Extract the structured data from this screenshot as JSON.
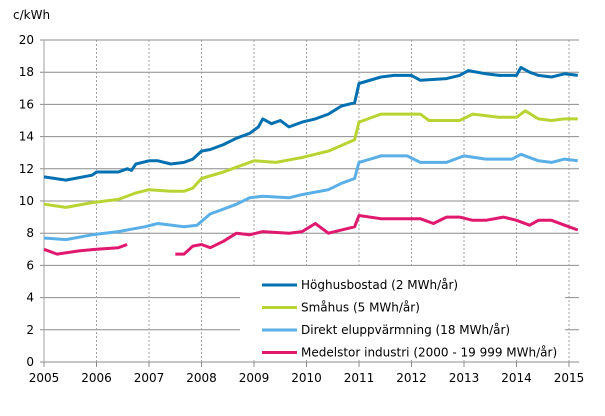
{
  "chart_data": {
    "type": "line",
    "title": "",
    "ylabel": "c/kWh",
    "xlabel": "",
    "xlim": [
      "2005-01",
      "2015-03"
    ],
    "ylim": [
      0,
      20
    ],
    "x_ticks": [
      "2005",
      "2006",
      "2007",
      "2008",
      "2009",
      "2010",
      "2011",
      "2012",
      "2013",
      "2014",
      "2015"
    ],
    "y_ticks": [
      "0",
      "2",
      "4",
      "6",
      "8",
      "10",
      "12",
      "14",
      "16",
      "18",
      "20"
    ],
    "grid": {
      "horizontal": "solid",
      "vertical": "dotted"
    },
    "legend_position": "bottom-right",
    "series": [
      {
        "name": "Höghusbostad (2 MWh/år)",
        "color": "#0070b0",
        "points": [
          [
            "2005-01",
            11.5
          ],
          [
            "2005-06",
            11.3
          ],
          [
            "2005-12",
            11.6
          ],
          [
            "2006-01",
            11.8
          ],
          [
            "2006-06",
            11.8
          ],
          [
            "2006-08",
            12.0
          ],
          [
            "2006-09",
            11.9
          ],
          [
            "2006-10",
            12.3
          ],
          [
            "2007-01",
            12.5
          ],
          [
            "2007-03",
            12.5
          ],
          [
            "2007-06",
            12.3
          ],
          [
            "2007-09",
            12.4
          ],
          [
            "2007-11",
            12.6
          ],
          [
            "2008-01",
            13.1
          ],
          [
            "2008-03",
            13.2
          ],
          [
            "2008-06",
            13.5
          ],
          [
            "2008-09",
            13.9
          ],
          [
            "2008-12",
            14.2
          ],
          [
            "2009-02",
            14.6
          ],
          [
            "2009-03",
            15.1
          ],
          [
            "2009-05",
            14.8
          ],
          [
            "2009-07",
            15.0
          ],
          [
            "2009-09",
            14.6
          ],
          [
            "2009-12",
            14.9
          ],
          [
            "2010-03",
            15.1
          ],
          [
            "2010-06",
            15.4
          ],
          [
            "2010-09",
            15.9
          ],
          [
            "2010-12",
            16.1
          ],
          [
            "2011-01",
            17.3
          ],
          [
            "2011-06",
            17.7
          ],
          [
            "2011-09",
            17.8
          ],
          [
            "2012-01",
            17.8
          ],
          [
            "2012-03",
            17.5
          ],
          [
            "2012-09",
            17.6
          ],
          [
            "2012-12",
            17.8
          ],
          [
            "2013-02",
            18.1
          ],
          [
            "2013-06",
            17.9
          ],
          [
            "2013-09",
            17.8
          ],
          [
            "2014-01",
            17.8
          ],
          [
            "2014-02",
            18.3
          ],
          [
            "2014-04",
            18.0
          ],
          [
            "2014-06",
            17.8
          ],
          [
            "2014-09",
            17.7
          ],
          [
            "2014-12",
            17.9
          ],
          [
            "2015-03",
            17.8
          ]
        ]
      },
      {
        "name": "Småhus (5 MWh/år)",
        "color": "#b8d432",
        "points": [
          [
            "2005-01",
            9.8
          ],
          [
            "2005-06",
            9.6
          ],
          [
            "2005-12",
            9.9
          ],
          [
            "2006-06",
            10.1
          ],
          [
            "2006-10",
            10.5
          ],
          [
            "2007-01",
            10.7
          ],
          [
            "2007-06",
            10.6
          ],
          [
            "2007-09",
            10.6
          ],
          [
            "2007-11",
            10.8
          ],
          [
            "2008-01",
            11.4
          ],
          [
            "2008-06",
            11.8
          ],
          [
            "2008-09",
            12.1
          ],
          [
            "2009-01",
            12.5
          ],
          [
            "2009-06",
            12.4
          ],
          [
            "2009-12",
            12.7
          ],
          [
            "2010-06",
            13.1
          ],
          [
            "2010-12",
            13.8
          ],
          [
            "2011-01",
            14.9
          ],
          [
            "2011-06",
            15.4
          ],
          [
            "2012-03",
            15.4
          ],
          [
            "2012-05",
            15.0
          ],
          [
            "2012-12",
            15.0
          ],
          [
            "2013-03",
            15.4
          ],
          [
            "2013-09",
            15.2
          ],
          [
            "2014-01",
            15.2
          ],
          [
            "2014-03",
            15.6
          ],
          [
            "2014-06",
            15.1
          ],
          [
            "2014-09",
            15.0
          ],
          [
            "2014-12",
            15.1
          ],
          [
            "2015-03",
            15.1
          ]
        ]
      },
      {
        "name": "Direkt eluppvärmning (18 MWh/år)",
        "color": "#5aafe6",
        "points": [
          [
            "2005-01",
            7.7
          ],
          [
            "2005-06",
            7.6
          ],
          [
            "2005-12",
            7.9
          ],
          [
            "2006-06",
            8.1
          ],
          [
            "2006-12",
            8.4
          ],
          [
            "2007-03",
            8.6
          ],
          [
            "2007-09",
            8.4
          ],
          [
            "2007-12",
            8.5
          ],
          [
            "2008-03",
            9.2
          ],
          [
            "2008-06",
            9.5
          ],
          [
            "2008-09",
            9.8
          ],
          [
            "2008-12",
            10.2
          ],
          [
            "2009-03",
            10.3
          ],
          [
            "2009-09",
            10.2
          ],
          [
            "2009-12",
            10.4
          ],
          [
            "2010-06",
            10.7
          ],
          [
            "2010-09",
            11.1
          ],
          [
            "2010-12",
            11.4
          ],
          [
            "2011-01",
            12.4
          ],
          [
            "2011-06",
            12.8
          ],
          [
            "2011-12",
            12.8
          ],
          [
            "2012-03",
            12.4
          ],
          [
            "2012-09",
            12.4
          ],
          [
            "2013-01",
            12.8
          ],
          [
            "2013-06",
            12.6
          ],
          [
            "2013-12",
            12.6
          ],
          [
            "2014-02",
            12.9
          ],
          [
            "2014-06",
            12.5
          ],
          [
            "2014-09",
            12.4
          ],
          [
            "2014-12",
            12.6
          ],
          [
            "2015-03",
            12.5
          ]
        ]
      },
      {
        "name": "Medelstor industri (2000 - 19 999 MWh/år)",
        "color": "#e0186e",
        "points": [
          [
            "2005-01",
            7.0
          ],
          [
            "2005-04",
            6.7
          ],
          [
            "2005-09",
            6.9
          ],
          [
            "2006-01",
            7.0
          ],
          [
            "2006-06",
            7.1
          ],
          [
            "2006-08",
            7.3
          ],
          [
            "2006-09",
            null
          ],
          [
            "2007-07",
            6.7
          ],
          [
            "2007-09",
            6.7
          ],
          [
            "2007-11",
            7.2
          ],
          [
            "2008-01",
            7.3
          ],
          [
            "2008-03",
            7.1
          ],
          [
            "2008-06",
            7.5
          ],
          [
            "2008-09",
            8.0
          ],
          [
            "2008-12",
            7.9
          ],
          [
            "2009-03",
            8.1
          ],
          [
            "2009-09",
            8.0
          ],
          [
            "2009-12",
            8.1
          ],
          [
            "2010-03",
            8.6
          ],
          [
            "2010-06",
            8.0
          ],
          [
            "2010-12",
            8.4
          ],
          [
            "2011-01",
            9.1
          ],
          [
            "2011-06",
            8.9
          ],
          [
            "2011-12",
            8.9
          ],
          [
            "2012-03",
            8.9
          ],
          [
            "2012-06",
            8.6
          ],
          [
            "2012-09",
            9.0
          ],
          [
            "2012-12",
            9.0
          ],
          [
            "2013-03",
            8.8
          ],
          [
            "2013-06",
            8.8
          ],
          [
            "2013-10",
            9.0
          ],
          [
            "2014-01",
            8.8
          ],
          [
            "2014-04",
            8.5
          ],
          [
            "2014-06",
            8.8
          ],
          [
            "2014-09",
            8.8
          ],
          [
            "2014-12",
            8.5
          ],
          [
            "2015-03",
            8.2
          ]
        ]
      }
    ]
  }
}
